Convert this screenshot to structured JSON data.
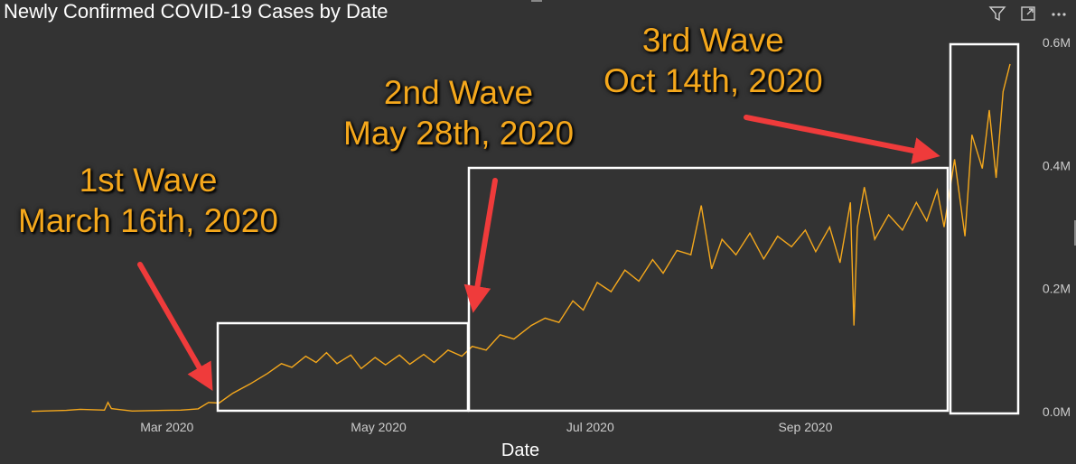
{
  "title": "Newly Confirmed COVID-19 Cases by Date",
  "toolbar": {
    "icons": [
      "filter-icon",
      "focus-mode-icon",
      "more-options-icon"
    ]
  },
  "colors": {
    "background": "#333333",
    "line": "#f5a81c",
    "annotation": "#f5a81c",
    "arrow": "#ef3b3b",
    "box": "#ffffff"
  },
  "annotations": [
    {
      "name": "first-wave",
      "line1": "1st Wave",
      "line2": "March 16th, 2020"
    },
    {
      "name": "second-wave",
      "line1": "2nd Wave",
      "line2": "May 28th, 2020"
    },
    {
      "name": "third-wave",
      "line1": "3rd Wave",
      "line2": "Oct 14th, 2020"
    }
  ],
  "chart_data": {
    "type": "line",
    "title": "Newly Confirmed COVID-19 Cases by Date",
    "xlabel": "Date",
    "ylabel": "",
    "x_ticks": [
      "Mar 2020",
      "May 2020",
      "Jul 2020",
      "Sep 2020"
    ],
    "y_ticks": [
      "0.0M",
      "0.2M",
      "0.4M",
      "0.6M"
    ],
    "ylim": [
      0,
      600000
    ],
    "xlim": [
      "2020-01-22",
      "2020-10-30"
    ],
    "grid": false,
    "legend": "none",
    "series": [
      {
        "values": [
          [
            "2020-01-22",
            500
          ],
          [
            "2020-02-01",
            2000
          ],
          [
            "2020-02-05",
            3800
          ],
          [
            "2020-02-12",
            2500
          ],
          [
            "2020-02-13",
            15000
          ],
          [
            "2020-02-14",
            5000
          ],
          [
            "2020-02-20",
            1000
          ],
          [
            "2020-02-29",
            2000
          ],
          [
            "2020-03-05",
            2500
          ],
          [
            "2020-03-10",
            4500
          ],
          [
            "2020-03-13",
            15000
          ],
          [
            "2020-03-16",
            14000
          ],
          [
            "2020-03-20",
            30000
          ],
          [
            "2020-03-25",
            45000
          ],
          [
            "2020-03-30",
            62000
          ],
          [
            "2020-04-03",
            78000
          ],
          [
            "2020-04-06",
            72000
          ],
          [
            "2020-04-10",
            90000
          ],
          [
            "2020-04-13",
            80000
          ],
          [
            "2020-04-16",
            96000
          ],
          [
            "2020-04-19",
            78000
          ],
          [
            "2020-04-23",
            92000
          ],
          [
            "2020-04-26",
            70000
          ],
          [
            "2020-04-30",
            88000
          ],
          [
            "2020-05-03",
            76000
          ],
          [
            "2020-05-07",
            92000
          ],
          [
            "2020-05-10",
            77000
          ],
          [
            "2020-05-14",
            93000
          ],
          [
            "2020-05-17",
            80000
          ],
          [
            "2020-05-21",
            100000
          ],
          [
            "2020-05-25",
            90000
          ],
          [
            "2020-05-28",
            106000
          ],
          [
            "2020-06-01",
            100000
          ],
          [
            "2020-06-05",
            125000
          ],
          [
            "2020-06-09",
            118000
          ],
          [
            "2020-06-14",
            140000
          ],
          [
            "2020-06-18",
            152000
          ],
          [
            "2020-06-22",
            145000
          ],
          [
            "2020-06-26",
            180000
          ],
          [
            "2020-06-29",
            165000
          ],
          [
            "2020-07-03",
            210000
          ],
          [
            "2020-07-07",
            195000
          ],
          [
            "2020-07-11",
            230000
          ],
          [
            "2020-07-15",
            212000
          ],
          [
            "2020-07-19",
            247000
          ],
          [
            "2020-07-22",
            225000
          ],
          [
            "2020-07-26",
            262000
          ],
          [
            "2020-07-30",
            255000
          ],
          [
            "2020-08-02",
            335000
          ],
          [
            "2020-08-05",
            232000
          ],
          [
            "2020-08-08",
            280000
          ],
          [
            "2020-08-12",
            255000
          ],
          [
            "2020-08-16",
            290000
          ],
          [
            "2020-08-20",
            248000
          ],
          [
            "2020-08-24",
            285000
          ],
          [
            "2020-08-28",
            268000
          ],
          [
            "2020-09-01",
            295000
          ],
          [
            "2020-09-04",
            260000
          ],
          [
            "2020-09-08",
            300000
          ],
          [
            "2020-09-11",
            242000
          ],
          [
            "2020-09-14",
            340000
          ],
          [
            "2020-09-15",
            140000
          ],
          [
            "2020-09-16",
            300000
          ],
          [
            "2020-09-18",
            365000
          ],
          [
            "2020-09-21",
            280000
          ],
          [
            "2020-09-25",
            320000
          ],
          [
            "2020-09-29",
            295000
          ],
          [
            "2020-10-03",
            340000
          ],
          [
            "2020-10-06",
            310000
          ],
          [
            "2020-10-09",
            360000
          ],
          [
            "2020-10-11",
            300000
          ],
          [
            "2020-10-14",
            410000
          ],
          [
            "2020-10-17",
            285000
          ],
          [
            "2020-10-19",
            450000
          ],
          [
            "2020-10-22",
            395000
          ],
          [
            "2020-10-24",
            490000
          ],
          [
            "2020-10-26",
            380000
          ],
          [
            "2020-10-28",
            520000
          ],
          [
            "2020-10-30",
            565000
          ]
        ]
      }
    ]
  }
}
